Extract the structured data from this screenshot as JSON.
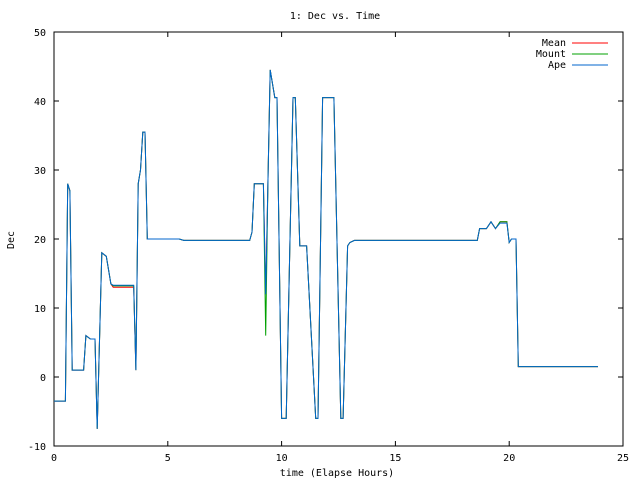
{
  "chart_data": {
    "type": "line",
    "title": "1: Dec vs. Time",
    "xlabel": "time (Elapse Hours)",
    "ylabel": "Dec",
    "xlim": [
      0,
      25
    ],
    "ylim": [
      -10,
      50
    ],
    "xticks": [
      0,
      5,
      10,
      15,
      20,
      25
    ],
    "yticks": [
      -10,
      0,
      10,
      20,
      30,
      40,
      50
    ],
    "grid": false,
    "legend_position": "top-right",
    "series": [
      {
        "name": "Mean",
        "color": "#ff0000",
        "x": [
          0,
          0.5,
          0.6,
          0.7,
          0.8,
          1.3,
          1.4,
          1.6,
          1.8,
          1.9,
          2.1,
          2.3,
          2.5,
          2.6,
          3.5,
          3.6,
          3.7,
          3.8,
          3.9,
          4.0,
          4.1,
          4.2,
          5.5,
          5.7,
          8.6,
          8.7,
          8.8,
          9.2,
          9.3,
          9.4,
          9.5,
          9.7,
          9.8,
          10.0,
          10.1,
          10.2,
          10.5,
          10.6,
          10.8,
          10.9,
          11.1,
          11.5,
          11.6,
          11.8,
          11.9,
          12.3,
          12.6,
          12.7,
          12.9,
          13.0,
          13.2,
          18.6,
          18.7,
          19.0,
          19.2,
          19.4,
          19.6,
          19.9,
          20.0,
          20.1,
          20.3,
          20.4,
          20.5,
          23.9
        ],
        "y": [
          -3.5,
          -3.5,
          28,
          27,
          1,
          1,
          6,
          5.5,
          5.5,
          -7.5,
          18,
          17.5,
          13.5,
          13,
          13,
          1,
          28,
          30,
          35.5,
          35.5,
          20,
          20,
          20,
          19.8,
          19.8,
          21,
          28,
          28,
          12,
          28,
          44.5,
          40.5,
          40.5,
          -6,
          -6,
          -6,
          40.5,
          40.5,
          19,
          19,
          19,
          -6,
          -6,
          40.5,
          40.5,
          40.5,
          -6,
          -6,
          19,
          19.5,
          19.8,
          19.8,
          21.5,
          21.5,
          22.5,
          21.5,
          22.5,
          22.5,
          19.5,
          20,
          20,
          1.5,
          1.5,
          1.5
        ]
      },
      {
        "name": "Mount",
        "color": "#00a000",
        "x": [
          0,
          0.5,
          0.6,
          0.7,
          0.8,
          1.3,
          1.4,
          1.6,
          1.8,
          1.9,
          2.1,
          2.3,
          2.5,
          2.6,
          3.5,
          3.6,
          3.7,
          3.8,
          3.9,
          4.0,
          4.1,
          4.2,
          5.5,
          5.7,
          8.6,
          8.7,
          8.8,
          9.2,
          9.3,
          9.4,
          9.5,
          9.7,
          9.8,
          10.0,
          10.1,
          10.2,
          10.5,
          10.6,
          10.8,
          10.9,
          11.1,
          11.5,
          11.6,
          11.8,
          11.9,
          12.3,
          12.6,
          12.7,
          12.9,
          13.0,
          13.2,
          18.6,
          18.7,
          19.0,
          19.2,
          19.4,
          19.6,
          19.9,
          20.0,
          20.1,
          20.3,
          20.4,
          20.5,
          23.9
        ],
        "y": [
          -3.5,
          -3.5,
          28,
          27,
          1,
          1,
          6,
          5.5,
          5.5,
          -7.5,
          18,
          17.5,
          13.5,
          13.2,
          13.2,
          1,
          28,
          30,
          35.5,
          35.5,
          20,
          20,
          20,
          19.8,
          19.8,
          21,
          28,
          28,
          6,
          28,
          44.5,
          40.5,
          40.5,
          -6,
          -6,
          -6,
          40.5,
          40.5,
          19,
          19,
          19,
          -6,
          -6,
          40.5,
          40.5,
          40.5,
          -6,
          -6,
          19,
          19.5,
          19.8,
          19.8,
          21.5,
          21.5,
          22.5,
          21.5,
          22.5,
          22.5,
          19.5,
          20,
          20,
          1.5,
          1.5,
          1.5
        ]
      },
      {
        "name": "Ape",
        "color": "#0066cc",
        "x": [
          0,
          0.5,
          0.6,
          0.7,
          0.8,
          1.3,
          1.4,
          1.6,
          1.8,
          1.9,
          2.1,
          2.3,
          2.5,
          2.6,
          3.5,
          3.6,
          3.7,
          3.8,
          3.9,
          4.0,
          4.1,
          4.2,
          5.5,
          5.7,
          8.6,
          8.7,
          8.8,
          9.2,
          9.3,
          9.4,
          9.5,
          9.7,
          9.8,
          10.0,
          10.1,
          10.2,
          10.5,
          10.6,
          10.8,
          10.9,
          11.1,
          11.5,
          11.6,
          11.8,
          11.9,
          12.3,
          12.6,
          12.7,
          12.9,
          13.0,
          13.2,
          18.6,
          18.7,
          19.0,
          19.2,
          19.4,
          19.6,
          19.9,
          20.0,
          20.1,
          20.3,
          20.4,
          20.5,
          23.9
        ],
        "y": [
          -3.5,
          -3.5,
          28,
          27,
          1,
          1,
          6,
          5.5,
          5.5,
          -7.5,
          18,
          17.5,
          13.5,
          13.3,
          13.3,
          1,
          28,
          30,
          35.5,
          35.5,
          20,
          20,
          20,
          19.8,
          19.8,
          21,
          28,
          28,
          12,
          28,
          44.5,
          40.5,
          40.5,
          -6,
          -6,
          -6,
          40.5,
          40.5,
          19,
          19,
          19,
          -6,
          -6,
          40.5,
          40.5,
          40.5,
          -6,
          -6,
          19,
          19.5,
          19.8,
          19.8,
          21.5,
          21.5,
          22.5,
          21.5,
          22.3,
          22.3,
          19.5,
          20,
          20,
          1.5,
          1.5,
          1.5
        ]
      }
    ]
  }
}
